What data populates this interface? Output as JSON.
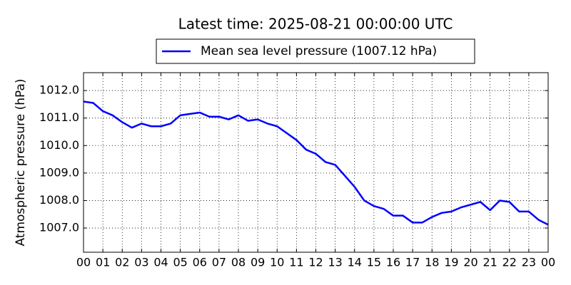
{
  "chart_data": {
    "type": "line",
    "title": "Latest time: 2025-08-21 00:00:00 UTC",
    "ylabel": "Atmospheric pressure (hPa)",
    "x": [
      0,
      0.5,
      1,
      1.5,
      2,
      2.5,
      3,
      3.5,
      4,
      4.5,
      5,
      5.5,
      6,
      6.5,
      7,
      7.5,
      8,
      8.5,
      9,
      9.5,
      10,
      10.5,
      11,
      11.5,
      12,
      12.5,
      13,
      13.5,
      14,
      14.5,
      15,
      15.5,
      16,
      16.5,
      17,
      17.5,
      18,
      18.5,
      19,
      19.5,
      20,
      20.5,
      21,
      21.5,
      22,
      22.5,
      23,
      23.5,
      24
    ],
    "series": [
      {
        "name": "Mean sea level pressure (1007.12 hPa)",
        "color": "#0000ff",
        "values": [
          1011.6,
          1011.55,
          1011.25,
          1011.1,
          1010.85,
          1010.65,
          1010.8,
          1010.7,
          1010.7,
          1010.8,
          1011.1,
          1011.15,
          1011.2,
          1011.05,
          1011.05,
          1010.95,
          1011.1,
          1010.9,
          1010.95,
          1010.8,
          1010.7,
          1010.45,
          1010.2,
          1009.85,
          1009.7,
          1009.4,
          1009.3,
          1008.9,
          1008.5,
          1008.0,
          1007.8,
          1007.7,
          1007.45,
          1007.45,
          1007.2,
          1007.2,
          1007.4,
          1007.55,
          1007.6,
          1007.75,
          1007.85,
          1007.95,
          1007.65,
          1008.0,
          1007.95,
          1007.6,
          1007.6,
          1007.3,
          1007.12
        ]
      }
    ],
    "xlim": [
      0,
      24
    ],
    "xticks": [
      {
        "value": 0,
        "label": "00"
      },
      {
        "value": 1,
        "label": "01"
      },
      {
        "value": 2,
        "label": "02"
      },
      {
        "value": 3,
        "label": "03"
      },
      {
        "value": 4,
        "label": "04"
      },
      {
        "value": 5,
        "label": "05"
      },
      {
        "value": 6,
        "label": "06"
      },
      {
        "value": 7,
        "label": "07"
      },
      {
        "value": 8,
        "label": "08"
      },
      {
        "value": 9,
        "label": "09"
      },
      {
        "value": 10,
        "label": "10"
      },
      {
        "value": 11,
        "label": "11"
      },
      {
        "value": 12,
        "label": "12"
      },
      {
        "value": 13,
        "label": "13"
      },
      {
        "value": 14,
        "label": "14"
      },
      {
        "value": 15,
        "label": "15"
      },
      {
        "value": 16,
        "label": "16"
      },
      {
        "value": 17,
        "label": "17"
      },
      {
        "value": 18,
        "label": "18"
      },
      {
        "value": 19,
        "label": "19"
      },
      {
        "value": 20,
        "label": "20"
      },
      {
        "value": 21,
        "label": "21"
      },
      {
        "value": 22,
        "label": "22"
      },
      {
        "value": 23,
        "label": "23"
      },
      {
        "value": 24,
        "label": "00"
      }
    ],
    "ylim": [
      1006.12,
      1012.65
    ],
    "yticks": [
      {
        "value": 1007,
        "label": "1007.0"
      },
      {
        "value": 1008,
        "label": "1008.0"
      },
      {
        "value": 1009,
        "label": "1009.0"
      },
      {
        "value": 1010,
        "label": "1010.0"
      },
      {
        "value": 1011,
        "label": "1011.0"
      },
      {
        "value": 1012,
        "label": "1012.0"
      }
    ],
    "grid": true
  }
}
